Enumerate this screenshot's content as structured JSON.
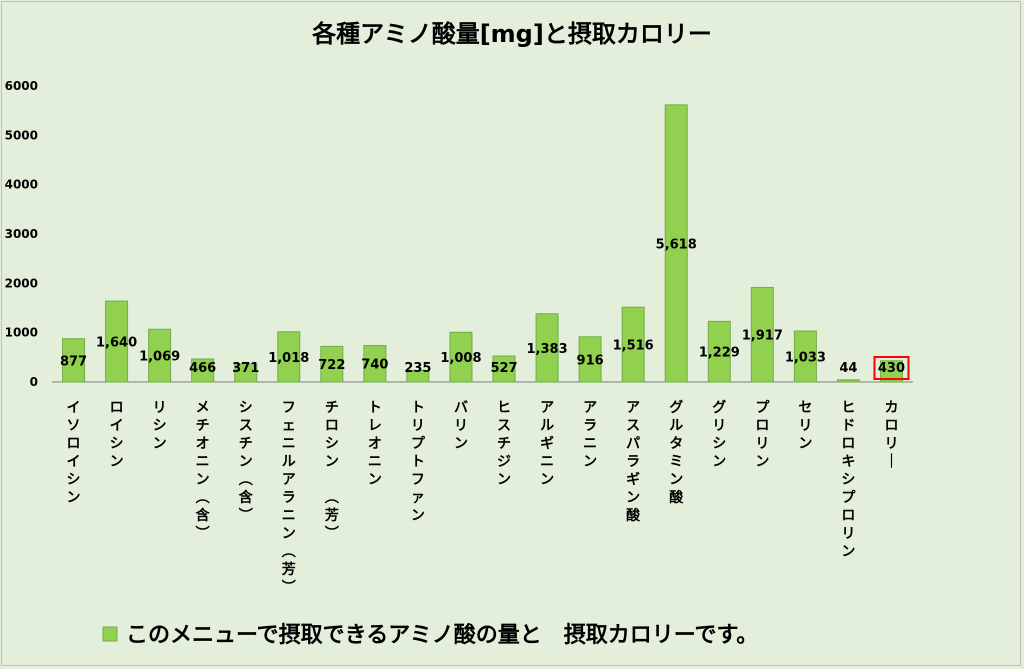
{
  "chart_data": {
    "type": "bar",
    "title": "各種アミノ酸量[mg]と摂取カロリー",
    "categories": [
      "イソロイシン",
      "ロイシン",
      "リシン",
      "メチオニン（含）",
      "シスチン（含）",
      "フェニルアラニン（芳）",
      "チロシン　（芳）",
      "トレオニン",
      "トリプトファン",
      "バリン",
      "ヒスチジン",
      "アルギニン",
      "アラニン",
      "アスパラギン酸",
      "グルタミン酸",
      "グリシン",
      "プロリン",
      "セリン",
      "ヒドロキシプロリン",
      "カロリー"
    ],
    "series": [
      {
        "name": "このメニューで摂取できるアミノ酸の量と　摂取カロリーです。",
        "values": [
          877,
          1640,
          1069,
          466,
          371,
          1018,
          722,
          740,
          235,
          1008,
          527,
          1383,
          916,
          1516,
          5618,
          1229,
          1917,
          1033,
          44,
          430
        ]
      }
    ],
    "data_labels": [
      "877",
      "1,640",
      "1,069",
      "466",
      "371",
      "1,018",
      "722",
      "740",
      "235",
      "1,008",
      "527",
      "1,383",
      "916",
      "1,516",
      "5,618",
      "1,229",
      "1,917",
      "1,033",
      "44",
      "430"
    ],
    "y_ticks": [
      "0",
      "1000",
      "2000",
      "3000",
      "4000",
      "5000",
      "6000"
    ],
    "ylim": [
      0,
      6000
    ],
    "grid": false,
    "legend_position": "bottom",
    "highlighted_category": "カロリー",
    "colors": {
      "bar_fill": "#92d050",
      "bar_stroke": "#70ad47",
      "background": "#e3efda",
      "highlight_box": "#ff0000",
      "axis": "#000000"
    }
  }
}
